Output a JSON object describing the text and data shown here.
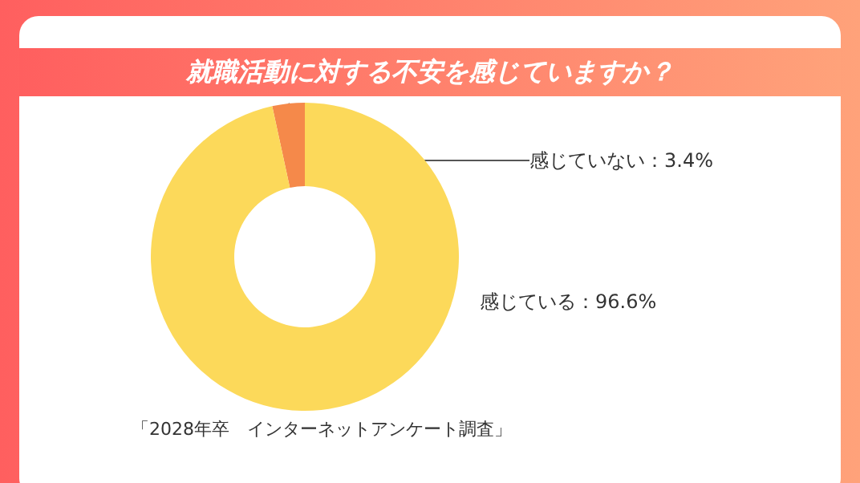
{
  "chart_data": {
    "type": "donut",
    "title": "就職活動に対する不安を感じていますか？",
    "categories": [
      "感じていない",
      "感じている"
    ],
    "values": [
      3.4,
      96.6
    ],
    "colors": [
      "#f5894a",
      "#fcd95a"
    ],
    "value_labels": [
      "3.4%",
      "96.6%"
    ],
    "legend": false,
    "annotations": [
      "「2028年卒　インターネットアンケート調査」"
    ]
  }
}
